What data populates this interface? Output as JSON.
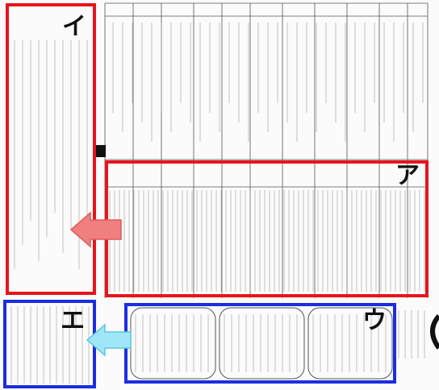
{
  "callouts": [
    {
      "label": "イ"
    },
    {
      "label": "ア"
    },
    {
      "label": "エ"
    },
    {
      "label": "ウ"
    }
  ]
}
